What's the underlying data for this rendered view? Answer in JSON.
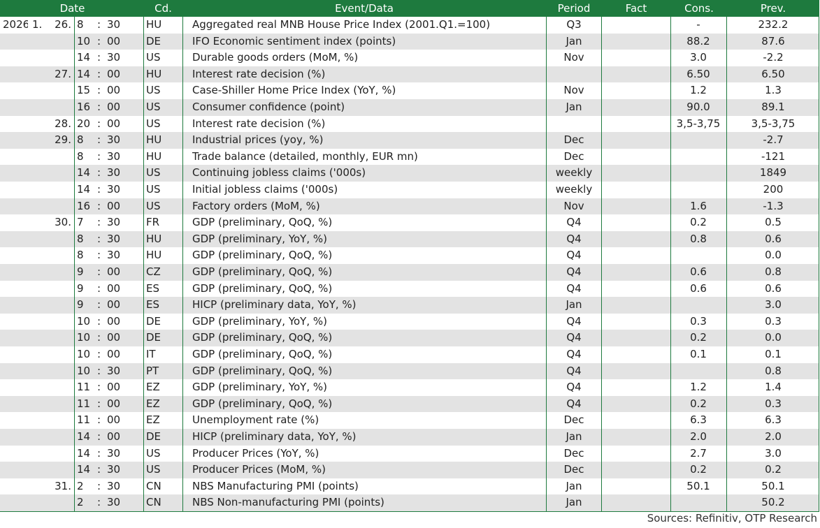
{
  "headers": {
    "date": "Date",
    "cd": "Cd.",
    "event": "Event/Data",
    "period": "Period",
    "fact": "Fact",
    "cons": "Cons.",
    "prev": "Prev."
  },
  "rows": [
    {
      "year": "2026",
      "mon": "1.",
      "day": "26.",
      "hr": "8",
      "min": "30",
      "cd": "HU",
      "event": "Aggregated real MNB House Price Index (2001.Q1.=100)",
      "period": "Q3",
      "fact": "",
      "cons": "-",
      "prev": "232.2"
    },
    {
      "year": "",
      "mon": "",
      "day": "",
      "hr": "10",
      "min": "00",
      "cd": "DE",
      "event": "IFO Economic sentiment index (points)",
      "period": "Jan",
      "fact": "",
      "cons": "88.2",
      "prev": "87.6"
    },
    {
      "year": "",
      "mon": "",
      "day": "",
      "hr": "14",
      "min": "30",
      "cd": "US",
      "event": "Durable goods orders (MoM, %)",
      "period": "Nov",
      "fact": "",
      "cons": "3.0",
      "prev": "-2.2"
    },
    {
      "year": "",
      "mon": "",
      "day": "27.",
      "hr": "14",
      "min": "00",
      "cd": "HU",
      "event": "Interest rate decision (%)",
      "period": "",
      "fact": "",
      "cons": "6.50",
      "prev": "6.50"
    },
    {
      "year": "",
      "mon": "",
      "day": "",
      "hr": "15",
      "min": "00",
      "cd": "US",
      "event": "Case-Shiller Home Price Index (YoY, %)",
      "period": "Nov",
      "fact": "",
      "cons": "1.2",
      "prev": "1.3"
    },
    {
      "year": "",
      "mon": "",
      "day": "",
      "hr": "16",
      "min": "00",
      "cd": "US",
      "event": "Consumer confidence (point)",
      "period": "Jan",
      "fact": "",
      "cons": "90.0",
      "prev": "89.1"
    },
    {
      "year": "",
      "mon": "",
      "day": "28.",
      "hr": "20",
      "min": "00",
      "cd": "US",
      "event": "Interest rate decision (%)",
      "period": "",
      "fact": "",
      "cons": "3,5-3,75",
      "prev": "3,5-3,75"
    },
    {
      "year": "",
      "mon": "",
      "day": "29.",
      "hr": "8",
      "min": "30",
      "cd": "HU",
      "event": "Industrial prices (yoy, %)",
      "period": "Dec",
      "fact": "",
      "cons": "",
      "prev": "-2.7"
    },
    {
      "year": "",
      "mon": "",
      "day": "",
      "hr": "8",
      "min": "30",
      "cd": "HU",
      "event": "Trade balance (detailed, monthly, EUR mn)",
      "period": "Dec",
      "fact": "",
      "cons": "",
      "prev": "-121"
    },
    {
      "year": "",
      "mon": "",
      "day": "",
      "hr": "14",
      "min": "30",
      "cd": "US",
      "event": "Continuing jobless claims ('000s)",
      "period": "weekly",
      "fact": "",
      "cons": "",
      "prev": "1849"
    },
    {
      "year": "",
      "mon": "",
      "day": "",
      "hr": "14",
      "min": "30",
      "cd": "US",
      "event": "Initial jobless claims ('000s)",
      "period": "weekly",
      "fact": "",
      "cons": "",
      "prev": "200"
    },
    {
      "year": "",
      "mon": "",
      "day": "",
      "hr": "16",
      "min": "00",
      "cd": "US",
      "event": "Factory orders (MoM, %)",
      "period": "Nov",
      "fact": "",
      "cons": "1.6",
      "prev": "-1.3"
    },
    {
      "year": "",
      "mon": "",
      "day": "30.",
      "hr": "7",
      "min": "30",
      "cd": "FR",
      "event": "GDP (preliminary, QoQ, %)",
      "period": "Q4",
      "fact": "",
      "cons": "0.2",
      "prev": "0.5"
    },
    {
      "year": "",
      "mon": "",
      "day": "",
      "hr": "8",
      "min": "30",
      "cd": "HU",
      "event": "GDP (preliminary, YoY, %)",
      "period": "Q4",
      "fact": "",
      "cons": "0.8",
      "prev": "0.6"
    },
    {
      "year": "",
      "mon": "",
      "day": "",
      "hr": "8",
      "min": "30",
      "cd": "HU",
      "event": "GDP (preliminary, QoQ, %)",
      "period": "Q4",
      "fact": "",
      "cons": "",
      "prev": "0.0"
    },
    {
      "year": "",
      "mon": "",
      "day": "",
      "hr": "9",
      "min": "00",
      "cd": "CZ",
      "event": "GDP (preliminary, QoQ, %)",
      "period": "Q4",
      "fact": "",
      "cons": "0.6",
      "prev": "0.8"
    },
    {
      "year": "",
      "mon": "",
      "day": "",
      "hr": "9",
      "min": "00",
      "cd": "ES",
      "event": "GDP (preliminary, QoQ, %)",
      "period": "Q4",
      "fact": "",
      "cons": "0.6",
      "prev": "0.6"
    },
    {
      "year": "",
      "mon": "",
      "day": "",
      "hr": "9",
      "min": "00",
      "cd": "ES",
      "event": "HICP (preliminary data, YoY, %)",
      "period": "Jan",
      "fact": "",
      "cons": "",
      "prev": "3.0"
    },
    {
      "year": "",
      "mon": "",
      "day": "",
      "hr": "10",
      "min": "00",
      "cd": "DE",
      "event": "GDP (preliminary, YoY, %)",
      "period": "Q4",
      "fact": "",
      "cons": "0.3",
      "prev": "0.3"
    },
    {
      "year": "",
      "mon": "",
      "day": "",
      "hr": "10",
      "min": "00",
      "cd": "DE",
      "event": "GDP (preliminary, QoQ, %)",
      "period": "Q4",
      "fact": "",
      "cons": "0.2",
      "prev": "0.0"
    },
    {
      "year": "",
      "mon": "",
      "day": "",
      "hr": "10",
      "min": "00",
      "cd": "IT",
      "event": "GDP (preliminary, QoQ, %)",
      "period": "Q4",
      "fact": "",
      "cons": "0.1",
      "prev": "0.1"
    },
    {
      "year": "",
      "mon": "",
      "day": "",
      "hr": "10",
      "min": "30",
      "cd": "PT",
      "event": "GDP (preliminary, QoQ, %)",
      "period": "Q4",
      "fact": "",
      "cons": "",
      "prev": "0.8"
    },
    {
      "year": "",
      "mon": "",
      "day": "",
      "hr": "11",
      "min": "00",
      "cd": "EZ",
      "event": "GDP (preliminary, YoY, %)",
      "period": "Q4",
      "fact": "",
      "cons": "1.2",
      "prev": "1.4"
    },
    {
      "year": "",
      "mon": "",
      "day": "",
      "hr": "11",
      "min": "00",
      "cd": "EZ",
      "event": "GDP (preliminary, QoQ, %)",
      "period": "Q4",
      "fact": "",
      "cons": "0.2",
      "prev": "0.3"
    },
    {
      "year": "",
      "mon": "",
      "day": "",
      "hr": "11",
      "min": "00",
      "cd": "EZ",
      "event": "Unemployment rate (%)",
      "period": "Dec",
      "fact": "",
      "cons": "6.3",
      "prev": "6.3"
    },
    {
      "year": "",
      "mon": "",
      "day": "",
      "hr": "14",
      "min": "00",
      "cd": "DE",
      "event": "HICP (preliminary data, YoY, %)",
      "period": "Jan",
      "fact": "",
      "cons": "2.0",
      "prev": "2.0"
    },
    {
      "year": "",
      "mon": "",
      "day": "",
      "hr": "14",
      "min": "30",
      "cd": "US",
      "event": "Producer Prices (YoY, %)",
      "period": "Dec",
      "fact": "",
      "cons": "2.7",
      "prev": "3.0"
    },
    {
      "year": "",
      "mon": "",
      "day": "",
      "hr": "14",
      "min": "30",
      "cd": "US",
      "event": "Producer Prices (MoM, %)",
      "period": "Dec",
      "fact": "",
      "cons": "0.2",
      "prev": "0.2"
    },
    {
      "year": "",
      "mon": "",
      "day": "31.",
      "hr": "2",
      "min": "30",
      "cd": "CN",
      "event": "NBS Manufacturing PMI (points)",
      "period": "Jan",
      "fact": "",
      "cons": "50.1",
      "prev": "50.1"
    },
    {
      "year": "",
      "mon": "",
      "day": "",
      "hr": "2",
      "min": "30",
      "cd": "CN",
      "event": "NBS Non-manufacturing PMI (points)",
      "period": "Jan",
      "fact": "",
      "cons": "",
      "prev": "50.2"
    }
  ],
  "time_separator": ":",
  "source": "Sources: Refinitiv, OTP Research",
  "colors": {
    "header_bg": "#1e7a3e",
    "header_text": "#ffffff",
    "alt_row": "#e3e3e3",
    "rule": "#1e7a3e"
  }
}
